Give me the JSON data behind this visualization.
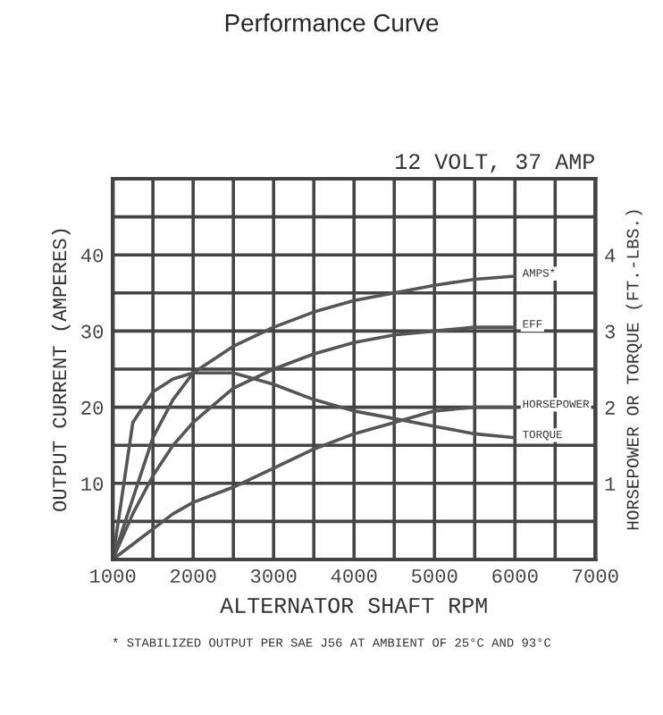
{
  "chart_data": {
    "type": "line",
    "title": "Performance Curve",
    "subtitle": "12 VOLT, 37 AMP",
    "xlabel": "ALTERNATOR SHAFT RPM",
    "ylabel": "OUTPUT CURRENT (AMPERES)",
    "y2label": "HORSEPOWER OR TORQUE (FT.-LBS.)",
    "annotations": [
      "* STABILIZED OUTPUT PER SAE J56 AT AMBIENT OF 25°C AND 93°C"
    ],
    "x": [
      1000,
      1250,
      1500,
      1750,
      2000,
      2500,
      3000,
      3500,
      4000,
      4500,
      5000,
      5500,
      6000
    ],
    "series": [
      {
        "name": "AMPS*",
        "color": "#555555",
        "values": [
          0,
          8,
          16,
          21,
          24.5,
          28,
          30.5,
          32.5,
          34,
          35,
          36,
          36.8,
          37.2
        ]
      },
      {
        "name": "EFF",
        "color": "#555555",
        "values": [
          0,
          6,
          11,
          15,
          18,
          22.5,
          25,
          27,
          28.5,
          29.5,
          30,
          30.5,
          30.5
        ]
      },
      {
        "name": "TORQUE",
        "color": "#555555",
        "axis": "y2",
        "values": [
          0,
          1.8,
          2.2,
          2.37,
          2.45,
          2.45,
          2.3,
          2.1,
          1.95,
          1.85,
          1.75,
          1.65,
          1.6
        ]
      },
      {
        "name": "HORSEPOWER",
        "color": "#555555",
        "axis": "y2",
        "values": [
          0,
          0.2,
          0.4,
          0.6,
          0.75,
          0.95,
          1.2,
          1.45,
          1.65,
          1.8,
          1.95,
          2.0,
          2.0
        ]
      }
    ],
    "xlim": [
      1000,
      7000
    ],
    "xticks": [
      1000,
      {
        "value": 1500,
        "label": null
      },
      2000,
      {
        "value": 2500,
        "label": null
      },
      3000,
      {
        "value": 3500,
        "label": null
      },
      4000,
      {
        "value": 4500,
        "label": null
      },
      5000,
      {
        "value": 5500,
        "label": null
      },
      6000,
      {
        "value": 6500,
        "label": null
      },
      7000
    ],
    "ylim": [
      0,
      50
    ],
    "yticks": [
      {
        "value": 5,
        "label": null
      },
      10,
      {
        "value": 15,
        "label": null
      },
      20,
      {
        "value": 25,
        "label": null
      },
      30,
      {
        "value": 35,
        "label": null
      },
      40,
      {
        "value": 45,
        "label": null
      }
    ],
    "y2lim": [
      0,
      5
    ],
    "y2ticks": [
      1,
      2,
      3,
      4
    ],
    "grid": true,
    "legend": false,
    "marker": "none",
    "line_style": "solid"
  }
}
